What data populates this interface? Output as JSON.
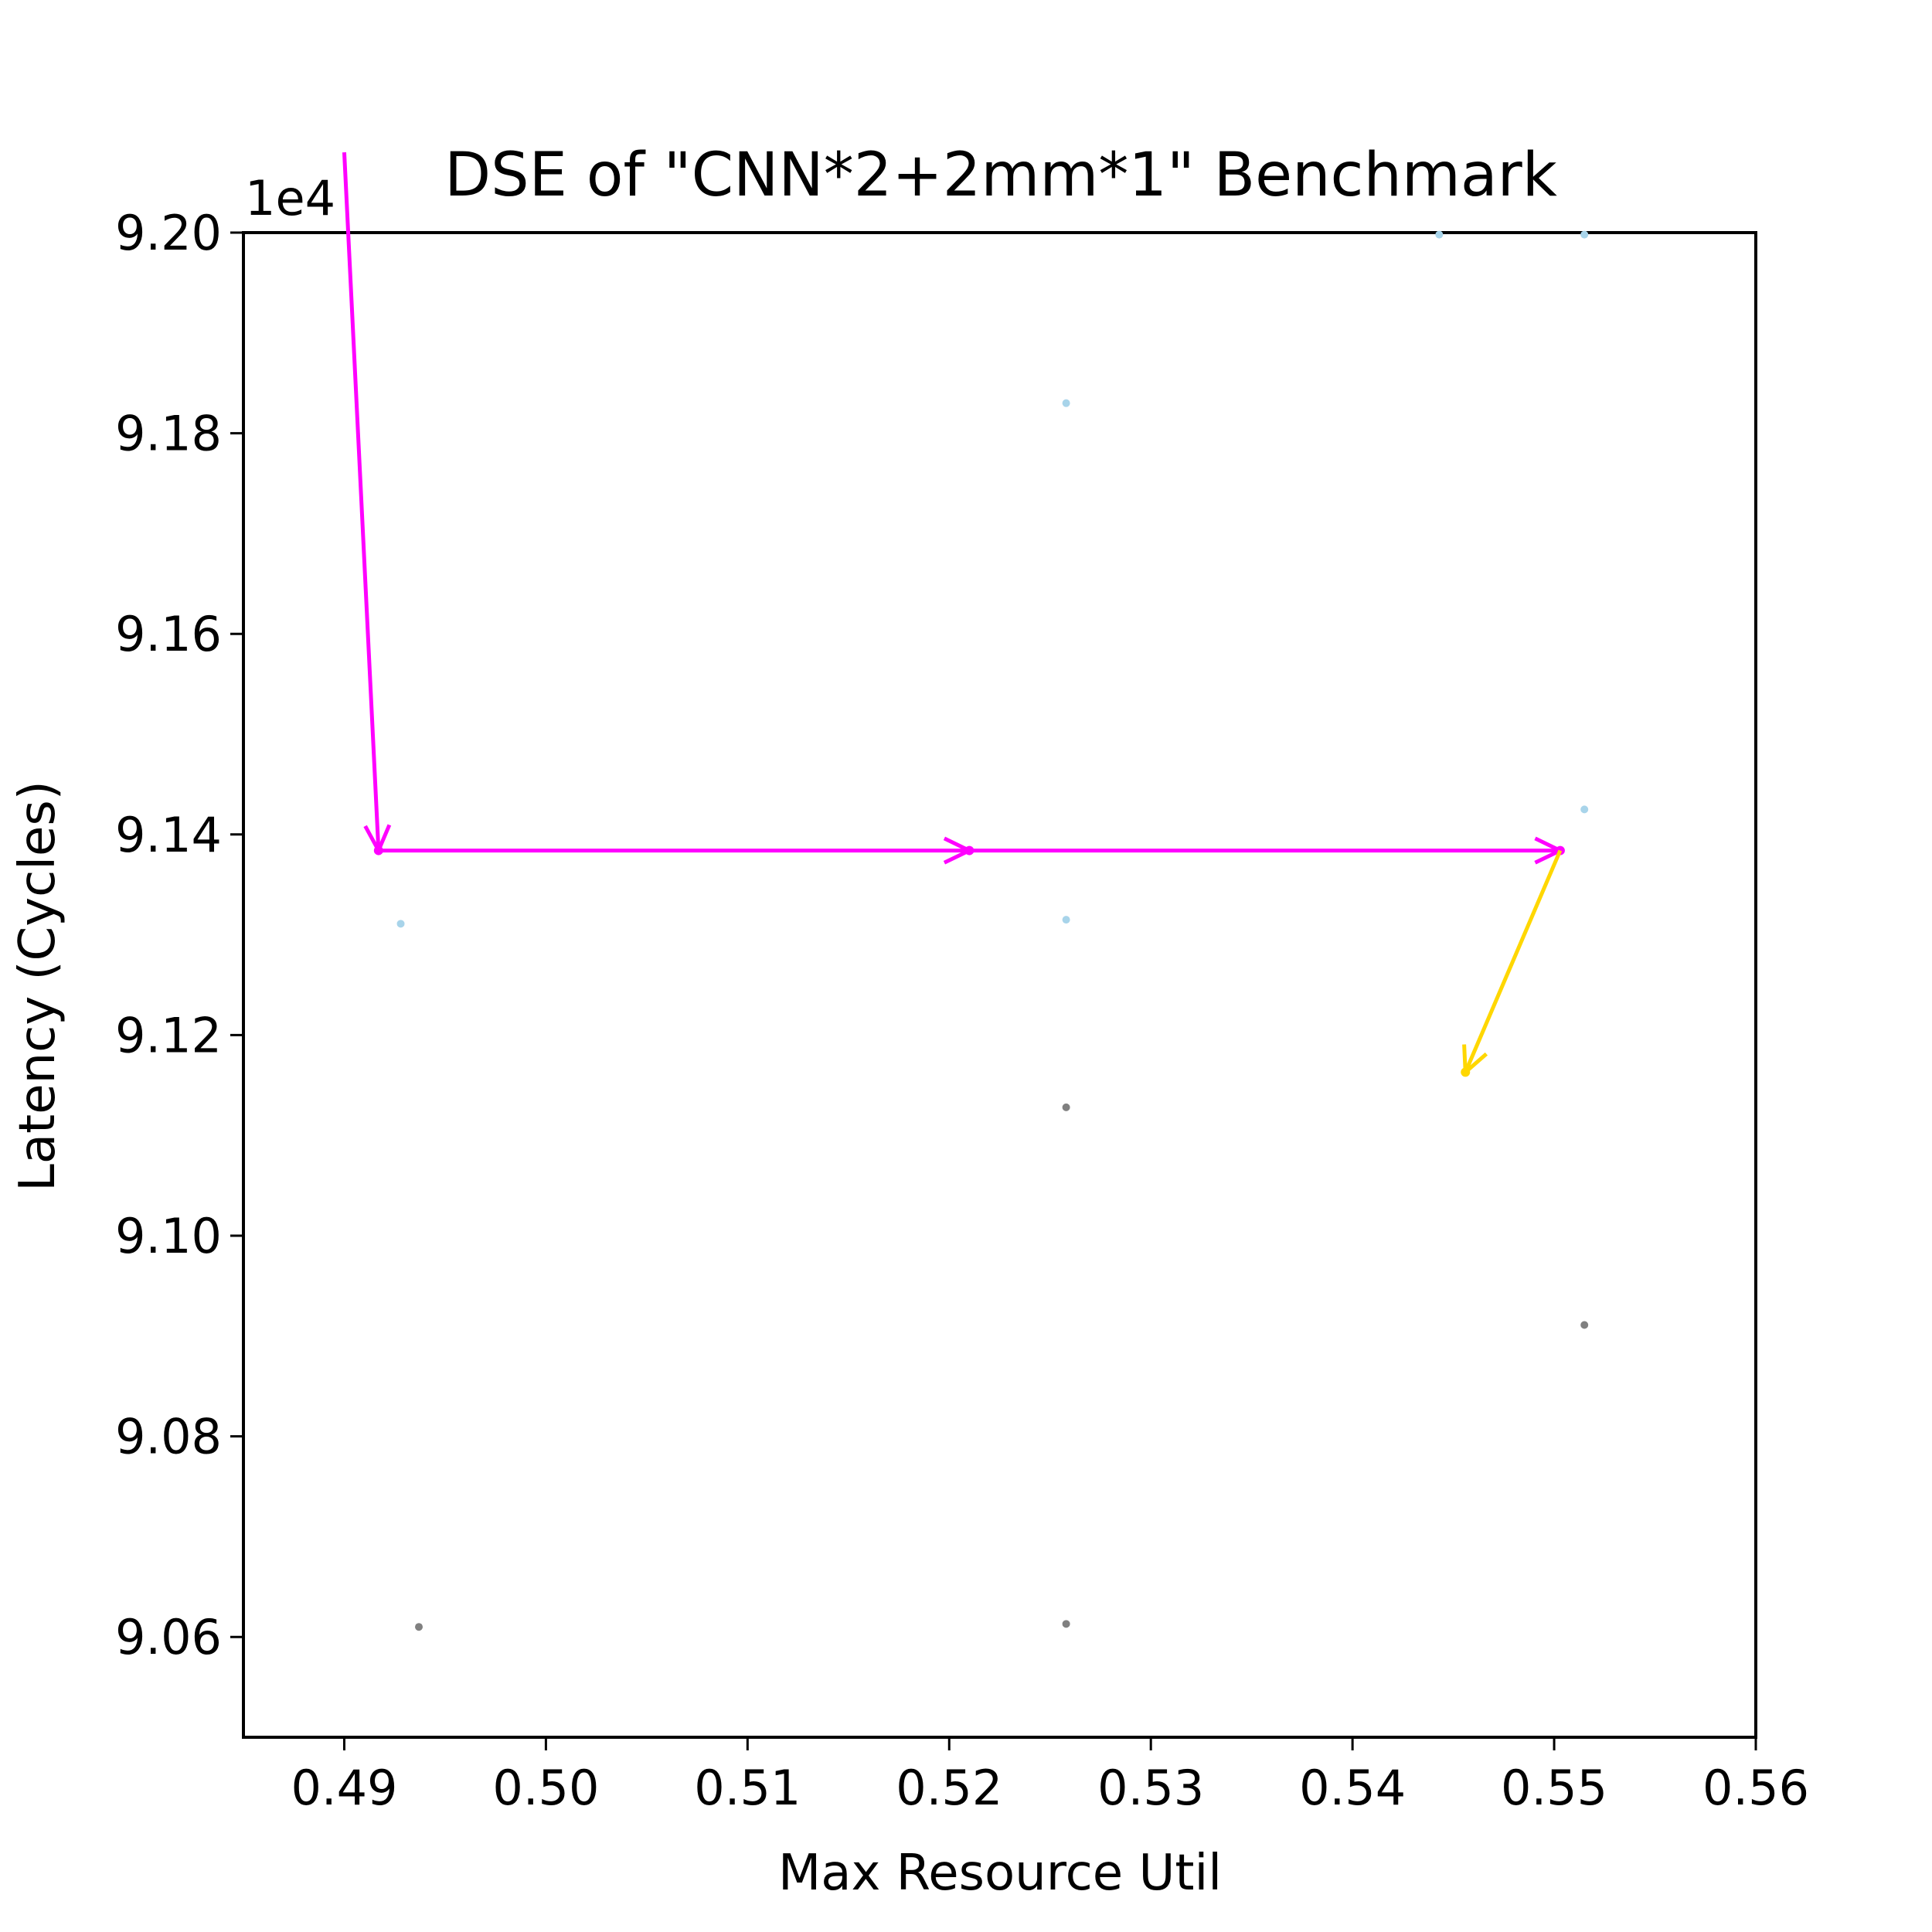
{
  "chart_data": {
    "type": "scatter",
    "title": "DSE of \"CNN*2+2mm*1\" Benchmark",
    "xlabel": "Max Resource Util",
    "ylabel": "Latency (Cycles)",
    "y_offset_text": "1e4",
    "xlim": [
      0.485,
      0.56
    ],
    "ylim": [
      9.05,
      9.2
    ],
    "x_ticks": [
      0.49,
      0.5,
      0.51,
      0.52,
      0.53,
      0.54,
      0.55,
      0.56
    ],
    "x_tick_labels": [
      "0.49",
      "0.50",
      "0.51",
      "0.52",
      "0.53",
      "0.54",
      "0.55",
      "0.56"
    ],
    "y_ticks": [
      9.06,
      9.08,
      9.1,
      9.12,
      9.14,
      9.16,
      9.18,
      9.2
    ],
    "y_tick_labels": [
      "9.06",
      "9.08",
      "9.10",
      "9.12",
      "9.14",
      "9.16",
      "9.18",
      "9.20"
    ],
    "grid": false,
    "series": [
      {
        "color": "#808080",
        "points": [
          {
            "x": 0.4937,
            "y": 9.061
          },
          {
            "x": 0.5258,
            "y": 9.0613
          },
          {
            "x": 0.5258,
            "y": 9.1128
          },
          {
            "x": 0.5515,
            "y": 9.0911
          }
        ]
      },
      {
        "color": "#a8d4ea",
        "points": [
          {
            "x": 0.5258,
            "y": 9.183
          },
          {
            "x": 0.5258,
            "y": 9.1315
          },
          {
            "x": 0.4928,
            "y": 9.1311
          },
          {
            "x": 0.5515,
            "y": 9.1425
          },
          {
            "x": 0.5443,
            "y": 9.1998
          },
          {
            "x": 0.5515,
            "y": 9.1998
          }
        ]
      }
    ],
    "arrows": [
      {
        "color": "#ff00ff",
        "from": {
          "x": 0.49,
          "y": 9.208
        },
        "to": {
          "x": 0.4917,
          "y": 9.1384
        }
      },
      {
        "color": "#ff00ff",
        "from": {
          "x": 0.4917,
          "y": 9.1384
        },
        "to": {
          "x": 0.521,
          "y": 9.1384
        }
      },
      {
        "color": "#ff00ff",
        "from": {
          "x": 0.521,
          "y": 9.1384
        },
        "to": {
          "x": 0.5503,
          "y": 9.1384
        }
      },
      {
        "color": "#ffd700",
        "from": {
          "x": 0.5503,
          "y": 9.1384
        },
        "to": {
          "x": 0.5456,
          "y": 9.1163
        }
      }
    ]
  }
}
